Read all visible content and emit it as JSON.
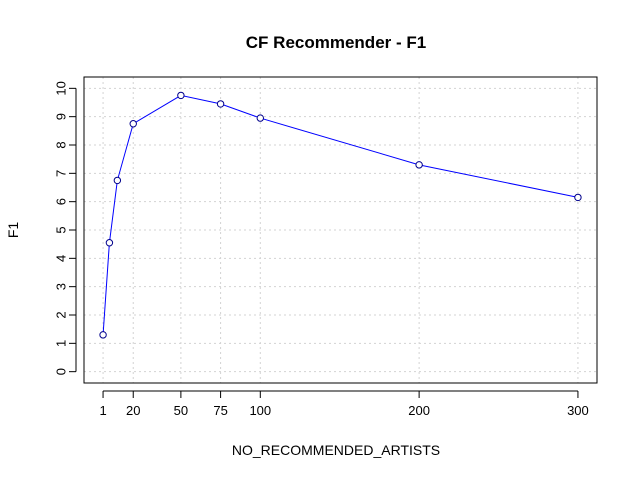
{
  "chart_data": {
    "type": "line",
    "title": "CF Recommender - F1",
    "xlabel": "NO_RECOMMENDED_ARTISTS",
    "ylabel": "F1",
    "x": [
      1,
      5,
      10,
      20,
      50,
      75,
      100,
      200,
      300
    ],
    "series": [
      {
        "values": [
          1.3,
          4.55,
          6.75,
          8.75,
          9.75,
          9.45,
          8.95,
          7.3,
          6.15
        ]
      }
    ],
    "xticks": [
      1,
      20,
      50,
      75,
      100,
      200,
      300
    ],
    "yticks": [
      0,
      1,
      2,
      3,
      4,
      5,
      6,
      7,
      8,
      9,
      10
    ],
    "xlim": [
      -11,
      312
    ],
    "ylim": [
      -0.4,
      10.4
    ],
    "grid": true,
    "colors": {
      "line": "#0000ff",
      "points": "#00008b",
      "grid": "#d3d3d3"
    }
  }
}
